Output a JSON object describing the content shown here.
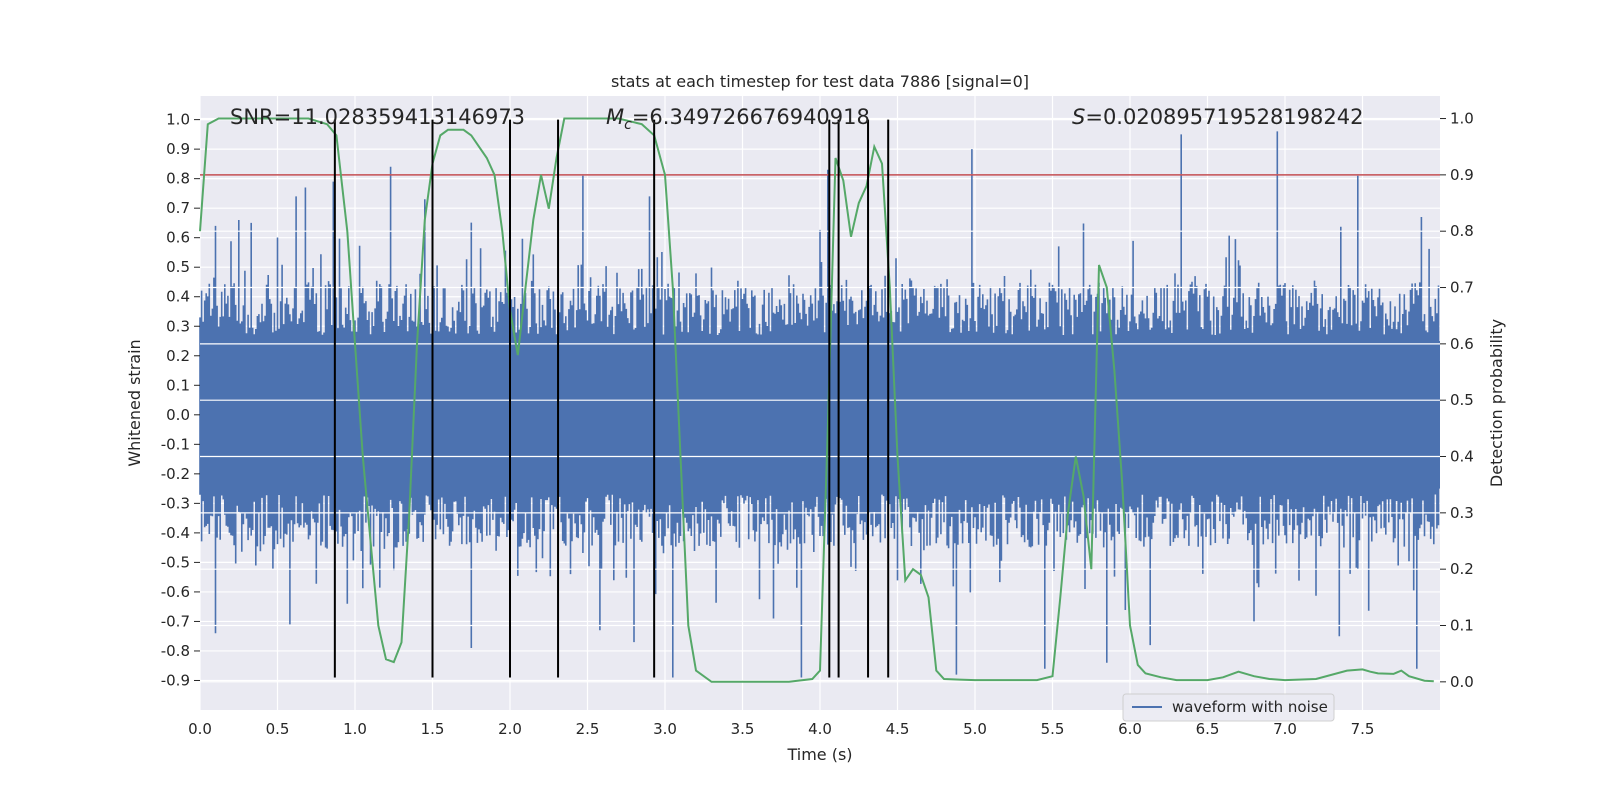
{
  "chart_data": {
    "type": "line",
    "title": "stats at each timestep for test data 7886 [signal=0]",
    "xlabel": "Time (s)",
    "ylabel": "Whitened strain",
    "y2label": "Detection probability",
    "xlim": [
      0.0,
      8.0
    ],
    "ylim": [
      -1.0,
      1.08
    ],
    "y2lim": [
      -0.05,
      1.04
    ],
    "xticks": [
      "0.0",
      "0.5",
      "1.0",
      "1.5",
      "2.0",
      "2.5",
      "3.0",
      "3.5",
      "4.0",
      "4.5",
      "5.0",
      "5.5",
      "6.0",
      "6.5",
      "7.0",
      "7.5"
    ],
    "xtick_values": [
      0.0,
      0.5,
      1.0,
      1.5,
      2.0,
      2.5,
      3.0,
      3.5,
      4.0,
      4.5,
      5.0,
      5.5,
      6.0,
      6.5,
      7.0,
      7.5
    ],
    "yticks": [
      "1.0",
      "0.9",
      "0.8",
      "0.7",
      "0.6",
      "0.5",
      "0.4",
      "0.3",
      "0.2",
      "0.1",
      "0.0",
      "-0.1",
      "-0.2",
      "-0.3",
      "-0.4",
      "-0.5",
      "-0.6",
      "-0.7",
      "-0.8",
      "-0.9"
    ],
    "ytick_values": [
      1.0,
      0.9,
      0.8,
      0.7,
      0.6,
      0.5,
      0.4,
      0.3,
      0.2,
      0.1,
      0.0,
      -0.1,
      -0.2,
      -0.3,
      -0.4,
      -0.5,
      -0.6,
      -0.7,
      -0.8,
      -0.9
    ],
    "y2ticks": [
      "1.0",
      "0.9",
      "0.8",
      "0.7",
      "0.6",
      "0.5",
      "0.4",
      "0.3",
      "0.2",
      "0.1",
      "0.0"
    ],
    "y2tick_values": [
      1.0,
      0.9,
      0.8,
      0.7,
      0.6,
      0.5,
      0.4,
      0.3,
      0.2,
      0.1,
      0.0
    ],
    "grid": true,
    "legend": {
      "placement": "bottom-right",
      "entries": [
        "waveform with noise"
      ]
    },
    "annotations": {
      "snr": "SNR=11.028359413146973",
      "mc_symbol": "M",
      "mc_sub": "c",
      "mc_value": "=6.349726676940918",
      "s_symbol": "S",
      "s_value": "=0.020895719528198242"
    },
    "threshold": 0.9,
    "threshold_color": "#c44e52",
    "vlines": [
      0.87,
      1.5,
      2.0,
      2.31,
      2.93,
      4.06,
      4.12,
      4.31,
      4.44
    ],
    "vline_range": [
      -0.89,
      1.0
    ],
    "series": [
      {
        "name": "waveform with noise",
        "color": "#4c72b0",
        "envelope_bins": 800,
        "typical_range": [
          -0.45,
          0.45
        ],
        "extremes": [
          [
            0.1,
            0.64
          ],
          [
            0.25,
            0.66
          ],
          [
            0.33,
            0.65
          ],
          [
            0.62,
            0.74
          ],
          [
            0.68,
            0.77
          ],
          [
            0.86,
            0.79
          ],
          [
            1.23,
            0.84
          ],
          [
            1.45,
            0.73
          ],
          [
            2.47,
            0.81
          ],
          [
            2.9,
            0.74
          ],
          [
            4.05,
            0.83
          ],
          [
            4.98,
            0.9
          ],
          [
            6.33,
            0.95
          ],
          [
            6.95,
            0.96
          ],
          [
            7.47,
            0.81
          ],
          [
            7.88,
            0.67
          ],
          [
            0.1,
            -0.74
          ],
          [
            0.58,
            -0.71
          ],
          [
            1.75,
            -0.79
          ],
          [
            2.58,
            -0.73
          ],
          [
            2.8,
            -0.77
          ],
          [
            3.05,
            -0.89
          ],
          [
            3.88,
            -0.89
          ],
          [
            4.88,
            -0.88
          ],
          [
            5.45,
            -0.86
          ],
          [
            5.85,
            -0.84
          ],
          [
            6.13,
            -0.78
          ],
          [
            7.35,
            -0.75
          ],
          [
            7.85,
            -0.86
          ],
          [
            0.95,
            -0.64
          ],
          [
            3.7,
            -0.69
          ],
          [
            6.8,
            -0.7
          ]
        ]
      },
      {
        "name": "",
        "color": "#55a868",
        "axis": "right",
        "x": [
          0.0,
          0.05,
          0.12,
          0.2,
          0.3,
          0.5,
          0.7,
          0.82,
          0.88,
          0.95,
          1.0,
          1.05,
          1.1,
          1.15,
          1.2,
          1.25,
          1.3,
          1.35,
          1.4,
          1.45,
          1.5,
          1.55,
          1.6,
          1.65,
          1.7,
          1.75,
          1.8,
          1.85,
          1.9,
          1.95,
          2.0,
          2.05,
          2.1,
          2.15,
          2.2,
          2.25,
          2.3,
          2.35,
          2.4,
          2.5,
          2.7,
          2.85,
          2.93,
          3.0,
          3.05,
          3.1,
          3.15,
          3.2,
          3.3,
          3.5,
          3.8,
          3.95,
          4.0,
          4.05,
          4.1,
          4.15,
          4.2,
          4.25,
          4.3,
          4.35,
          4.4,
          4.45,
          4.5,
          4.55,
          4.6,
          4.65,
          4.7,
          4.75,
          4.8,
          4.9,
          5.0,
          5.2,
          5.4,
          5.5,
          5.55,
          5.6,
          5.65,
          5.7,
          5.75,
          5.8,
          5.85,
          5.9,
          5.95,
          6.0,
          6.05,
          6.1,
          6.2,
          6.3,
          6.5,
          6.6,
          6.7,
          6.8,
          6.9,
          7.0,
          7.2,
          7.4,
          7.5,
          7.55,
          7.6,
          7.7,
          7.75,
          7.8,
          7.9,
          7.96
        ],
        "y": [
          0.8,
          0.99,
          1.0,
          1.0,
          1.0,
          1.0,
          1.0,
          0.99,
          0.97,
          0.8,
          0.6,
          0.4,
          0.25,
          0.1,
          0.04,
          0.035,
          0.07,
          0.3,
          0.6,
          0.82,
          0.92,
          0.97,
          0.98,
          0.98,
          0.98,
          0.97,
          0.95,
          0.93,
          0.9,
          0.8,
          0.66,
          0.58,
          0.7,
          0.82,
          0.9,
          0.84,
          0.93,
          1.0,
          1.0,
          1.0,
          1.0,
          0.99,
          0.97,
          0.9,
          0.7,
          0.4,
          0.1,
          0.02,
          0.0,
          0.0,
          0.0,
          0.005,
          0.02,
          0.45,
          0.93,
          0.89,
          0.79,
          0.85,
          0.88,
          0.95,
          0.92,
          0.7,
          0.4,
          0.18,
          0.2,
          0.19,
          0.15,
          0.02,
          0.005,
          0.004,
          0.003,
          0.003,
          0.003,
          0.01,
          0.15,
          0.3,
          0.4,
          0.33,
          0.2,
          0.74,
          0.7,
          0.55,
          0.35,
          0.1,
          0.03,
          0.015,
          0.008,
          0.003,
          0.003,
          0.008,
          0.018,
          0.01,
          0.005,
          0.003,
          0.005,
          0.02,
          0.022,
          0.018,
          0.015,
          0.014,
          0.02,
          0.01,
          0.002,
          0.001
        ]
      }
    ]
  }
}
